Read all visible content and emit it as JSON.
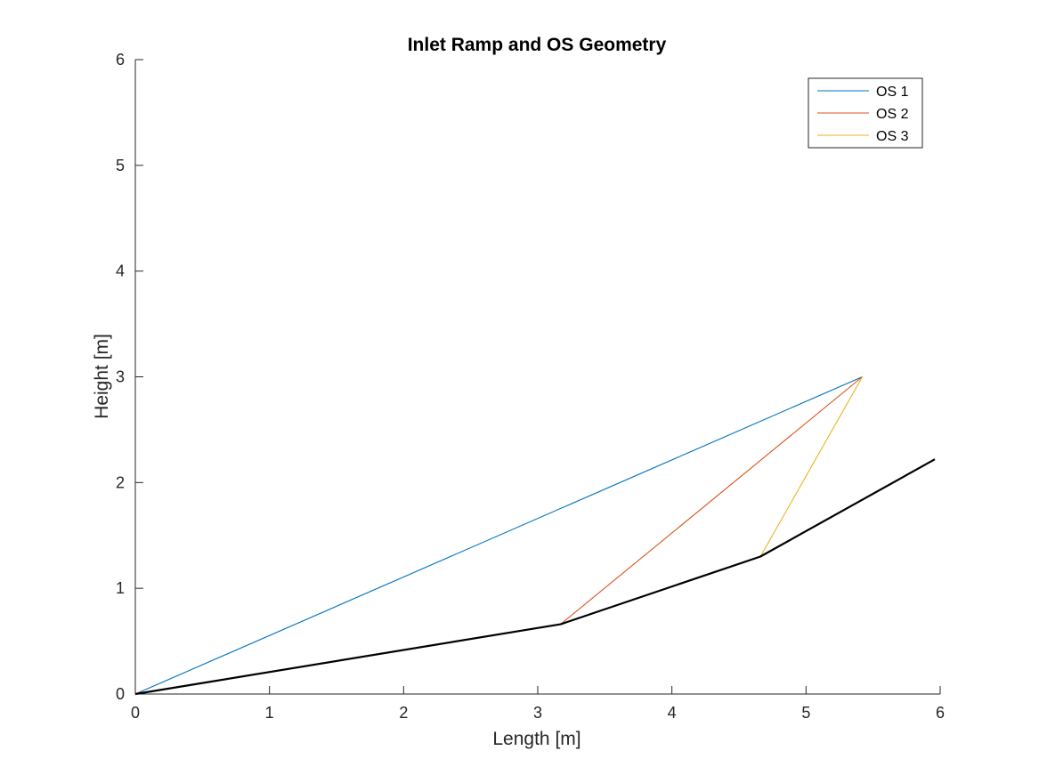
{
  "chart_data": {
    "type": "line",
    "title": "Inlet Ramp and OS Geometry",
    "xlabel": "Length [m]",
    "ylabel": "Height [m]",
    "xlim": [
      0,
      6
    ],
    "ylim": [
      0,
      6
    ],
    "xticks": [
      0,
      1,
      2,
      3,
      4,
      5,
      6
    ],
    "yticks": [
      0,
      1,
      2,
      3,
      4,
      5,
      6
    ],
    "grid": false,
    "legend_position": "top-right",
    "series": [
      {
        "name": "OS 1",
        "color": "#0072BD",
        "x": [
          0,
          5.42
        ],
        "y": [
          0,
          3.0
        ]
      },
      {
        "name": "OS 2",
        "color": "#D95319",
        "x": [
          3.17,
          5.42
        ],
        "y": [
          0.66,
          3.0
        ]
      },
      {
        "name": "OS 3",
        "color": "#EDB120",
        "x": [
          4.66,
          5.42
        ],
        "y": [
          1.3,
          3.0
        ]
      }
    ],
    "ramp": {
      "color": "#000000",
      "x": [
        0,
        3.17,
        4.66,
        5.96
      ],
      "y": [
        0,
        0.66,
        1.3,
        2.22
      ]
    }
  }
}
